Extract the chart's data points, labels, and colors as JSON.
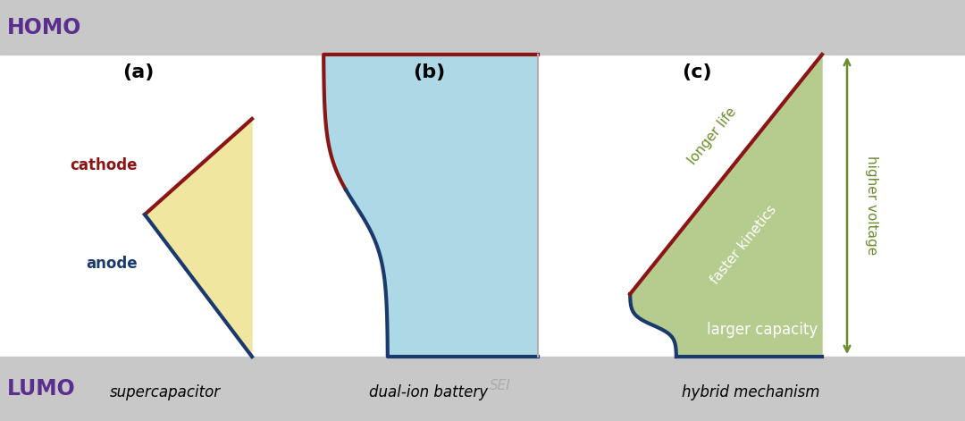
{
  "bg_color": "#ffffff",
  "homo_lumo_color": "#c8c8c8",
  "homo_text": "HOMO",
  "lumo_text": "LUMO",
  "homo_lumo_text_color": "#5b2d8e",
  "title_a": "(a)",
  "title_b": "(b)",
  "title_c": "(c)",
  "label_a": "supercapacitor",
  "label_b": "dual-ion battery",
  "label_c": "hybrid mechanism",
  "cathode_color": "#8b1515",
  "anode_color": "#1a3a6e",
  "fill_a_color": "#f0e6a0",
  "fill_b_color": "#add8e6",
  "fill_c_color": "#b5cc8e",
  "cathode_label": "cathode",
  "anode_label": "anode",
  "sei_label": "SEI",
  "longer_life": "longer life",
  "faster_kinetics": "faster kinetics",
  "higher_voltage": "higher voltage",
  "larger_capacity": "larger capacity",
  "annotation_green": "#6b8c2a",
  "white": "#ffffff",
  "higher_voltage_color": "#6b8c2a",
  "line_width": 3.0,
  "fig_w": 10.8,
  "fig_h": 4.71
}
